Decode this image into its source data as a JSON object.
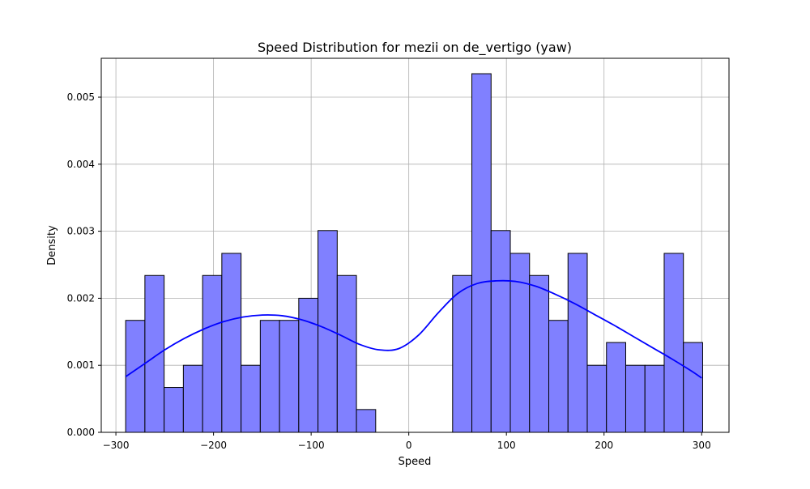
{
  "chart_data": {
    "type": "bar",
    "title": "Speed Distribution for mezii on de_vertigo (yaw)",
    "xlabel": "Speed",
    "ylabel": "Density",
    "xlim": [
      -315,
      328
    ],
    "ylim": [
      0,
      0.00558
    ],
    "xticks": [
      -300,
      -200,
      -100,
      0,
      100,
      200,
      300
    ],
    "xtick_labels": [
      "−300",
      "−200",
      "−100",
      "0",
      "100",
      "200",
      "300"
    ],
    "yticks": [
      0,
      0.001,
      0.002,
      0.003,
      0.004,
      0.005
    ],
    "ytick_labels": [
      "0.000",
      "0.001",
      "0.002",
      "0.003",
      "0.004",
      "0.005"
    ],
    "grid": true,
    "bin_edges": [
      -290,
      -270.3,
      -250.6,
      -230.9,
      -211.2,
      -191.5,
      -171.8,
      -152.1,
      -132.4,
      -112.7,
      -93,
      -73.3,
      -53.6,
      -33.9,
      -14.2,
      5.5,
      25.2,
      44.9,
      64.6,
      84.3,
      104,
      123.7,
      143.4,
      163.1,
      182.8,
      202.5,
      222.2,
      241.9,
      261.6,
      281.3,
      301
    ],
    "densities": [
      0.00167,
      0.00234,
      0.00067,
      0.001,
      0.00234,
      0.00267,
      0.001,
      0.00167,
      0.00167,
      0.002,
      0.00301,
      0.00234,
      0.00034,
      0,
      0,
      0,
      0,
      0.00234,
      0.00535,
      0.00301,
      0.00267,
      0.00234,
      0.00167,
      0.00267,
      0.001,
      0.00134,
      0.001,
      0.001,
      0.00267,
      0.00134
    ],
    "kde": {
      "x": [
        -290,
        -270,
        -250,
        -230,
        -210,
        -190,
        -170,
        -150,
        -130,
        -110,
        -90,
        -70,
        -50,
        -30,
        -10,
        10,
        30,
        50,
        70,
        90,
        110,
        130,
        150,
        170,
        190,
        210,
        230,
        250,
        270,
        290,
        300
      ],
      "y": [
        0.00083,
        0.00103,
        0.00123,
        0.0014,
        0.00154,
        0.00165,
        0.00172,
        0.00175,
        0.00174,
        0.00168,
        0.00158,
        0.00145,
        0.00131,
        0.00123,
        0.00125,
        0.00145,
        0.00178,
        0.00207,
        0.00222,
        0.00226,
        0.00225,
        0.00218,
        0.00206,
        0.00192,
        0.00176,
        0.0016,
        0.00143,
        0.00126,
        0.00109,
        0.00091,
        0.00081
      ]
    },
    "bar_color": "#8080ff",
    "bar_edge_color": "#000000",
    "kde_color": "#0000ff",
    "grid_color": "#b0b0b0"
  }
}
